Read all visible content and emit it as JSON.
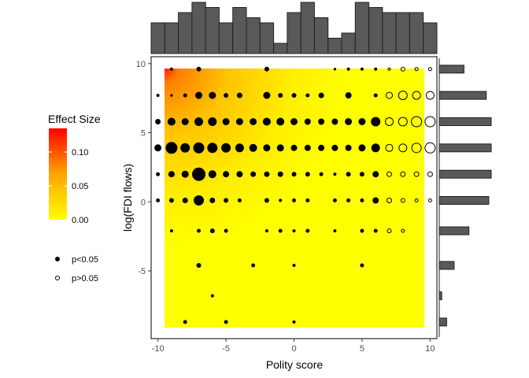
{
  "chart_data": {
    "type": "scatter",
    "title": "",
    "xlabel": "Polity score",
    "ylabel": "log(FDI flows)",
    "xlim": [
      -10.5,
      10.5
    ],
    "ylim": [
      -9.9,
      10.5
    ],
    "xticks": [
      -10,
      -5,
      0,
      5,
      10
    ],
    "yticks": [
      -5,
      0,
      5,
      10
    ],
    "xtick_labels": [
      "-10",
      "-5",
      "0",
      "5",
      "10"
    ],
    "ytick_labels": [
      "-5",
      "0",
      "5",
      "10"
    ],
    "grid": false,
    "background_heatmap": {
      "description_colors": {
        "low": "#ffff00",
        "mid": "#ffa500",
        "high": "#ff0000"
      },
      "x_range": [
        -10,
        10
      ],
      "y_range": [
        -9,
        9.7
      ],
      "max_effect_at": [
        -10,
        9.7
      ]
    },
    "colorbar": {
      "title": "Effect Size",
      "ticks": [
        0.0,
        0.05,
        0.1
      ],
      "tick_labels": [
        "0.00",
        "0.05",
        "0.10"
      ],
      "range": [
        0,
        0.135
      ],
      "colors": [
        "#ffff00",
        "#ffa500",
        "#ff0000"
      ]
    },
    "legend_shapes": [
      {
        "label": "p<0.05",
        "filled": true
      },
      {
        "label": "p>0.05",
        "filled": false
      }
    ],
    "points": [
      {
        "x": -9,
        "y": 9.6,
        "s": 1.5,
        "sig": true
      },
      {
        "x": -7,
        "y": 9.6,
        "s": 2.5,
        "sig": true
      },
      {
        "x": -2,
        "y": 9.6,
        "s": 2.5,
        "sig": true
      },
      {
        "x": 3,
        "y": 9.6,
        "s": 1.2,
        "sig": true
      },
      {
        "x": 4,
        "y": 9.6,
        "s": 1.5,
        "sig": true
      },
      {
        "x": 5,
        "y": 9.6,
        "s": 1.5,
        "sig": true
      },
      {
        "x": 6,
        "y": 9.6,
        "s": 1.5,
        "sig": true
      },
      {
        "x": 7,
        "y": 9.6,
        "s": 1.5,
        "sig": false
      },
      {
        "x": 8,
        "y": 9.6,
        "s": 2.5,
        "sig": false
      },
      {
        "x": 9,
        "y": 9.6,
        "s": 2.0,
        "sig": false
      },
      {
        "x": 10,
        "y": 9.6,
        "s": 2.0,
        "sig": false
      },
      {
        "x": -10,
        "y": 7.7,
        "s": 1.5,
        "sig": true
      },
      {
        "x": -9,
        "y": 7.7,
        "s": 1.2,
        "sig": true
      },
      {
        "x": -8,
        "y": 7.7,
        "s": 2.0,
        "sig": true
      },
      {
        "x": -7,
        "y": 7.7,
        "s": 4.0,
        "sig": true
      },
      {
        "x": -6,
        "y": 7.7,
        "s": 4.0,
        "sig": true
      },
      {
        "x": -5,
        "y": 7.7,
        "s": 2.5,
        "sig": true
      },
      {
        "x": -4,
        "y": 7.7,
        "s": 3.0,
        "sig": true
      },
      {
        "x": -2,
        "y": 7.7,
        "s": 4.0,
        "sig": true
      },
      {
        "x": -1,
        "y": 7.7,
        "s": 2.5,
        "sig": true
      },
      {
        "x": 0,
        "y": 7.7,
        "s": 2.5,
        "sig": true
      },
      {
        "x": 1,
        "y": 7.7,
        "s": 2.0,
        "sig": true
      },
      {
        "x": 2,
        "y": 7.7,
        "s": 3.0,
        "sig": true
      },
      {
        "x": 4,
        "y": 7.7,
        "s": 3.5,
        "sig": true
      },
      {
        "x": 6,
        "y": 7.7,
        "s": 2.0,
        "sig": true
      },
      {
        "x": 7,
        "y": 7.7,
        "s": 4.0,
        "sig": false
      },
      {
        "x": 8,
        "y": 7.7,
        "s": 5.5,
        "sig": false
      },
      {
        "x": 9,
        "y": 7.7,
        "s": 5.0,
        "sig": false
      },
      {
        "x": 10,
        "y": 7.7,
        "s": 5.0,
        "sig": false
      },
      {
        "x": -10,
        "y": 5.8,
        "s": 3.0,
        "sig": true
      },
      {
        "x": -9,
        "y": 5.8,
        "s": 4.5,
        "sig": true
      },
      {
        "x": -8,
        "y": 5.8,
        "s": 4.0,
        "sig": true
      },
      {
        "x": -7,
        "y": 5.8,
        "s": 5.0,
        "sig": true
      },
      {
        "x": -6,
        "y": 5.8,
        "s": 5.0,
        "sig": true
      },
      {
        "x": -5,
        "y": 5.8,
        "s": 4.0,
        "sig": true
      },
      {
        "x": -4,
        "y": 5.8,
        "s": 4.0,
        "sig": true
      },
      {
        "x": -3,
        "y": 5.8,
        "s": 4.0,
        "sig": true
      },
      {
        "x": -2,
        "y": 5.8,
        "s": 4.5,
        "sig": true
      },
      {
        "x": -1,
        "y": 5.8,
        "s": 4.5,
        "sig": true
      },
      {
        "x": 0,
        "y": 5.8,
        "s": 4.0,
        "sig": true
      },
      {
        "x": 1,
        "y": 5.8,
        "s": 3.5,
        "sig": true
      },
      {
        "x": 2,
        "y": 5.8,
        "s": 3.5,
        "sig": true
      },
      {
        "x": 3,
        "y": 5.8,
        "s": 3.5,
        "sig": true
      },
      {
        "x": 4,
        "y": 5.8,
        "s": 4.0,
        "sig": true
      },
      {
        "x": 5,
        "y": 5.8,
        "s": 4.0,
        "sig": true
      },
      {
        "x": 6,
        "y": 5.8,
        "s": 5.5,
        "sig": true
      },
      {
        "x": 7,
        "y": 5.8,
        "s": 5.0,
        "sig": false
      },
      {
        "x": 8,
        "y": 5.8,
        "s": 5.5,
        "sig": false
      },
      {
        "x": 9,
        "y": 5.8,
        "s": 6.5,
        "sig": false
      },
      {
        "x": 10,
        "y": 5.8,
        "s": 6.5,
        "sig": false
      },
      {
        "x": -10,
        "y": 3.9,
        "s": 4.0,
        "sig": true
      },
      {
        "x": -9,
        "y": 3.9,
        "s": 7.0,
        "sig": true
      },
      {
        "x": -8,
        "y": 3.9,
        "s": 5.5,
        "sig": true
      },
      {
        "x": -7,
        "y": 3.9,
        "s": 6.5,
        "sig": true
      },
      {
        "x": -6,
        "y": 3.9,
        "s": 6.0,
        "sig": true
      },
      {
        "x": -5,
        "y": 3.9,
        "s": 5.5,
        "sig": true
      },
      {
        "x": -4,
        "y": 3.9,
        "s": 5.0,
        "sig": true
      },
      {
        "x": -3,
        "y": 3.9,
        "s": 4.5,
        "sig": true
      },
      {
        "x": -2,
        "y": 3.9,
        "s": 4.0,
        "sig": true
      },
      {
        "x": -1,
        "y": 3.9,
        "s": 4.0,
        "sig": true
      },
      {
        "x": 0,
        "y": 3.9,
        "s": 3.5,
        "sig": true
      },
      {
        "x": 1,
        "y": 3.9,
        "s": 3.5,
        "sig": true
      },
      {
        "x": 2,
        "y": 3.9,
        "s": 3.5,
        "sig": true
      },
      {
        "x": 3,
        "y": 3.9,
        "s": 3.5,
        "sig": true
      },
      {
        "x": 4,
        "y": 3.9,
        "s": 3.5,
        "sig": true
      },
      {
        "x": 5,
        "y": 3.9,
        "s": 4.0,
        "sig": true
      },
      {
        "x": 6,
        "y": 3.9,
        "s": 5.0,
        "sig": true
      },
      {
        "x": 7,
        "y": 3.9,
        "s": 4.5,
        "sig": false
      },
      {
        "x": 8,
        "y": 3.9,
        "s": 5.0,
        "sig": false
      },
      {
        "x": 9,
        "y": 3.9,
        "s": 6.0,
        "sig": false
      },
      {
        "x": 10,
        "y": 3.9,
        "s": 6.5,
        "sig": false
      },
      {
        "x": -10,
        "y": 2.0,
        "s": 2.0,
        "sig": true
      },
      {
        "x": -9,
        "y": 2.0,
        "s": 3.5,
        "sig": true
      },
      {
        "x": -8,
        "y": 2.0,
        "s": 4.0,
        "sig": true
      },
      {
        "x": -7,
        "y": 2.0,
        "s": 8.0,
        "sig": true
      },
      {
        "x": -6,
        "y": 2.0,
        "s": 4.5,
        "sig": true
      },
      {
        "x": -5,
        "y": 2.0,
        "s": 3.5,
        "sig": true
      },
      {
        "x": -4,
        "y": 2.0,
        "s": 3.5,
        "sig": true
      },
      {
        "x": -3,
        "y": 2.0,
        "s": 3.0,
        "sig": true
      },
      {
        "x": -2,
        "y": 2.0,
        "s": 3.0,
        "sig": true
      },
      {
        "x": -1,
        "y": 2.0,
        "s": 3.0,
        "sig": true
      },
      {
        "x": 0,
        "y": 2.0,
        "s": 2.5,
        "sig": true
      },
      {
        "x": 1,
        "y": 2.0,
        "s": 2.5,
        "sig": true
      },
      {
        "x": 2,
        "y": 2.0,
        "s": 2.0,
        "sig": true
      },
      {
        "x": 3,
        "y": 2.0,
        "s": 1.5,
        "sig": true
      },
      {
        "x": 4,
        "y": 2.0,
        "s": 2.5,
        "sig": true
      },
      {
        "x": 5,
        "y": 2.0,
        "s": 2.5,
        "sig": true
      },
      {
        "x": 6,
        "y": 2.0,
        "s": 3.5,
        "sig": true
      },
      {
        "x": 7,
        "y": 2.0,
        "s": 3.0,
        "sig": false
      },
      {
        "x": 8,
        "y": 2.0,
        "s": 3.0,
        "sig": false
      },
      {
        "x": 9,
        "y": 2.0,
        "s": 3.0,
        "sig": false
      },
      {
        "x": 10,
        "y": 2.0,
        "s": 3.0,
        "sig": false
      },
      {
        "x": -10,
        "y": 0.1,
        "s": 2.0,
        "sig": true
      },
      {
        "x": -9,
        "y": 0.1,
        "s": 2.5,
        "sig": true
      },
      {
        "x": -8,
        "y": 0.1,
        "s": 3.0,
        "sig": true
      },
      {
        "x": -7,
        "y": 0.1,
        "s": 6.0,
        "sig": true
      },
      {
        "x": -6,
        "y": 0.1,
        "s": 3.0,
        "sig": true
      },
      {
        "x": -5,
        "y": 0.1,
        "s": 2.5,
        "sig": true
      },
      {
        "x": -4,
        "y": 0.1,
        "s": 2.0,
        "sig": true
      },
      {
        "x": -2,
        "y": 0.1,
        "s": 2.5,
        "sig": true
      },
      {
        "x": -1,
        "y": 0.1,
        "s": 1.5,
        "sig": true
      },
      {
        "x": 0,
        "y": 0.1,
        "s": 2.0,
        "sig": true
      },
      {
        "x": 1,
        "y": 0.1,
        "s": 2.0,
        "sig": true
      },
      {
        "x": 3,
        "y": 0.1,
        "s": 2.0,
        "sig": true
      },
      {
        "x": 4,
        "y": 0.1,
        "s": 2.0,
        "sig": true
      },
      {
        "x": 5,
        "y": 0.1,
        "s": 2.0,
        "sig": true
      },
      {
        "x": 6,
        "y": 0.1,
        "s": 3.5,
        "sig": true
      },
      {
        "x": 7,
        "y": 0.1,
        "s": 3.0,
        "sig": false
      },
      {
        "x": 8,
        "y": 0.1,
        "s": 2.5,
        "sig": false
      },
      {
        "x": 9,
        "y": 0.1,
        "s": 2.0,
        "sig": false
      },
      {
        "x": 10,
        "y": 0.1,
        "s": 2.0,
        "sig": false
      },
      {
        "x": -9,
        "y": -2.1,
        "s": 1.5,
        "sig": true
      },
      {
        "x": -7,
        "y": -2.1,
        "s": 2.0,
        "sig": true
      },
      {
        "x": -6,
        "y": -2.1,
        "s": 2.5,
        "sig": true
      },
      {
        "x": -5,
        "y": -2.1,
        "s": 2.0,
        "sig": true
      },
      {
        "x": -2,
        "y": -2.1,
        "s": 1.5,
        "sig": true
      },
      {
        "x": -1,
        "y": -2.1,
        "s": 2.0,
        "sig": true
      },
      {
        "x": 0,
        "y": -2.1,
        "s": 1.5,
        "sig": true
      },
      {
        "x": 1,
        "y": -2.1,
        "s": 2.0,
        "sig": true
      },
      {
        "x": 3,
        "y": -2.1,
        "s": 1.5,
        "sig": true
      },
      {
        "x": 5,
        "y": -2.1,
        "s": 2.0,
        "sig": true
      },
      {
        "x": 6,
        "y": -2.1,
        "s": 2.0,
        "sig": true
      },
      {
        "x": 7,
        "y": -2.1,
        "s": 2.5,
        "sig": false
      },
      {
        "x": 8,
        "y": -2.1,
        "s": 2.0,
        "sig": false
      },
      {
        "x": -7,
        "y": -4.6,
        "s": 2.5,
        "sig": true
      },
      {
        "x": -3,
        "y": -4.6,
        "s": 2.0,
        "sig": true
      },
      {
        "x": 0,
        "y": -4.6,
        "s": 1.5,
        "sig": true
      },
      {
        "x": 5,
        "y": -4.6,
        "s": 2.0,
        "sig": true
      },
      {
        "x": -6,
        "y": -6.8,
        "s": 1.5,
        "sig": true
      },
      {
        "x": -8,
        "y": -8.7,
        "s": 2.0,
        "sig": true
      },
      {
        "x": -5,
        "y": -8.7,
        "s": 2.0,
        "sig": true
      },
      {
        "x": 0,
        "y": -8.7,
        "s": 1.5,
        "sig": true
      }
    ],
    "top_histogram": {
      "axis": "x",
      "bins": [
        -10,
        -9,
        -8,
        -7,
        -6,
        -5,
        -4,
        -3,
        -2,
        -1,
        0,
        1,
        2,
        3,
        4,
        5,
        6,
        7,
        8,
        9,
        10
      ],
      "counts": [
        6,
        6,
        8,
        10,
        9,
        6,
        9,
        7,
        6,
        2,
        8,
        10,
        7,
        3,
        4,
        10,
        9,
        8,
        8,
        8,
        6
      ]
    },
    "right_histogram": {
      "axis": "y",
      "bins": [
        9.6,
        7.7,
        5.8,
        3.9,
        2.0,
        0.1,
        -2.1,
        -4.6,
        -6.8,
        -8.7
      ],
      "counts": [
        10,
        19,
        21,
        21,
        21,
        20,
        12,
        6,
        1,
        3
      ]
    }
  }
}
